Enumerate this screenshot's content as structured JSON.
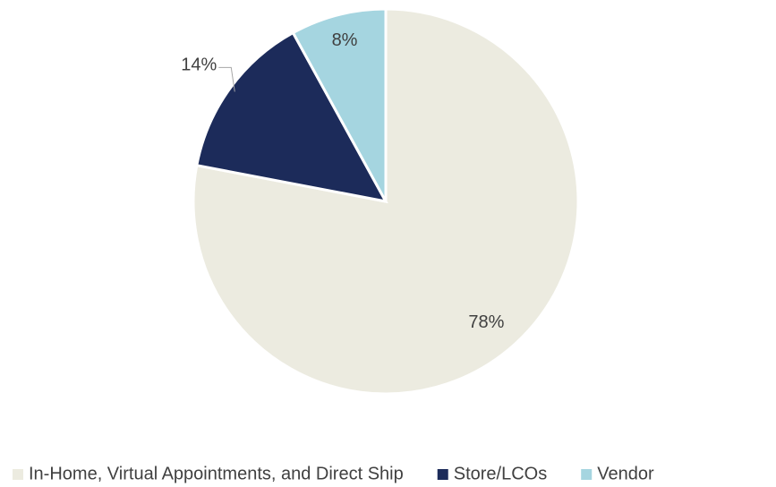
{
  "chart_data": {
    "type": "pie",
    "categories": [
      "In-Home, Virtual Appointments, and Direct Ship",
      "Store/LCOs",
      "Vendor"
    ],
    "values": [
      78,
      14,
      8
    ],
    "value_labels": [
      "78%",
      "14%",
      "8%"
    ],
    "colors": [
      "#ecebe0",
      "#1c2b5a",
      "#a5d5e0"
    ],
    "legend": "bottom"
  }
}
